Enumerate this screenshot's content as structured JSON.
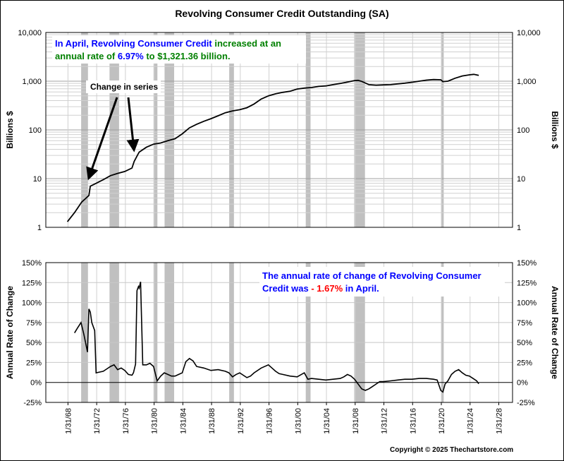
{
  "title": "Revolving Consumer Credit Outstanding (SA)",
  "copyright": "Copyright © 2025 Thechartstore.com",
  "colors": {
    "recession": "#c0c0c0",
    "line": "#000000",
    "blue": "#0000ff",
    "green": "#008000",
    "red": "#ff0000"
  },
  "x_axis": {
    "ticks": [
      "1/31/68",
      "1/31/72",
      "1/31/76",
      "1/31/80",
      "1/31/84",
      "1/31/88",
      "1/31/92",
      "1/31/96",
      "1/31/00",
      "1/31/04",
      "1/31/08",
      "1/31/12",
      "1/31/16",
      "1/31/20",
      "1/31/24",
      "1/31/28"
    ]
  },
  "recessions": [
    [
      1969.92,
      1970.87
    ],
    [
      1973.87,
      1975.2
    ],
    [
      1980.0,
      1980.54
    ],
    [
      1981.54,
      1982.87
    ],
    [
      1990.54,
      1991.2
    ],
    [
      2001.2,
      2001.87
    ],
    [
      2007.95,
      2009.45
    ],
    [
      2020.12,
      2020.3
    ]
  ],
  "chart_data": [
    {
      "type": "line",
      "scale": "log",
      "ylabel": "Billions $",
      "y_ticks": [
        "1",
        "10",
        "100",
        "1,000",
        "10,000"
      ],
      "ylim": [
        1,
        10000
      ],
      "grid": true,
      "annotation": {
        "parts": [
          {
            "text": "In April, Revolving Consumer Credit ",
            "color": "blue"
          },
          {
            "text": "increased at an annual rate of ",
            "color": "green"
          },
          {
            "text": "6.97%",
            "color": "blue"
          },
          {
            "text": " to $1,321.36 billion.",
            "color": "green"
          }
        ],
        "change_label": "Change in series"
      },
      "x": [
        1968.0,
        1969.0,
        1970.0,
        1971.0,
        1971.2,
        1972.0,
        1973.0,
        1974.0,
        1975.0,
        1976.0,
        1977.0,
        1977.3,
        1977.8,
        1978.0,
        1979.0,
        1980.0,
        1981.0,
        1982.0,
        1983.0,
        1984.0,
        1985.0,
        1986.0,
        1987.0,
        1988.0,
        1989.0,
        1990.0,
        1991.0,
        1992.0,
        1993.0,
        1994.0,
        1995.0,
        1996.0,
        1997.0,
        1998.0,
        1999.0,
        2000.0,
        2001.0,
        2002.0,
        2003.0,
        2004.0,
        2005.0,
        2006.0,
        2007.0,
        2008.0,
        2008.5,
        2009.0,
        2010.0,
        2011.0,
        2012.0,
        2013.0,
        2014.0,
        2015.0,
        2016.0,
        2017.0,
        2018.0,
        2019.0,
        2020.0,
        2020.3,
        2021.0,
        2022.0,
        2023.0,
        2024.0,
        2024.6,
        2025.3
      ],
      "values": [
        1.3,
        2.0,
        3.3,
        4.5,
        7.0,
        8.0,
        9.5,
        11.5,
        12.8,
        14.0,
        16.5,
        22.5,
        31.0,
        35.0,
        44.0,
        51.0,
        54.0,
        60.0,
        66.0,
        83.0,
        110.0,
        130.0,
        150.0,
        170.0,
        195.0,
        225.0,
        245.0,
        260.0,
        285.0,
        340.0,
        430.0,
        500.0,
        550.0,
        590.0,
        620.0,
        690.0,
        720.0,
        740.0,
        780.0,
        800.0,
        850.0,
        900.0,
        960.0,
        1030.0,
        1040.0,
        990.0,
        850.0,
        830.0,
        840.0,
        850.0,
        880.0,
        910.0,
        950.0,
        1000.0,
        1050.0,
        1080.0,
        1070.0,
        980.0,
        1000.0,
        1150.0,
        1280.0,
        1350.0,
        1380.0,
        1320.0
      ]
    },
    {
      "type": "line",
      "ylabel": "Annual Rate of Change",
      "y_ticks": [
        "-25%",
        "0%",
        "25%",
        "50%",
        "75%",
        "100%",
        "125%",
        "150%"
      ],
      "ylim": [
        -25,
        150
      ],
      "grid": true,
      "zero_line": true,
      "annotation": {
        "parts": [
          {
            "text": "The annual rate of change of Revolving Consumer Credit was ",
            "color": "blue"
          },
          {
            "text": "- 1.67%",
            "color": "red"
          },
          {
            "text": " in April.",
            "color": "blue"
          }
        ]
      },
      "x": [
        1969.0,
        1969.4,
        1969.9,
        1970.3,
        1970.8,
        1971.0,
        1971.2,
        1971.4,
        1971.8,
        1972.0,
        1972.5,
        1973.0,
        1973.5,
        1974.0,
        1974.5,
        1975.0,
        1975.5,
        1976.0,
        1976.5,
        1977.0,
        1977.2,
        1977.5,
        1977.7,
        1977.9,
        1978.0,
        1978.2,
        1978.5,
        1979.0,
        1979.5,
        1980.0,
        1980.5,
        1981.0,
        1981.5,
        1982.0,
        1982.5,
        1983.0,
        1983.5,
        1984.0,
        1984.5,
        1985.0,
        1985.5,
        1986.0,
        1987.0,
        1988.0,
        1989.0,
        1990.0,
        1990.5,
        1991.0,
        1991.5,
        1992.0,
        1992.5,
        1993.0,
        1993.5,
        1994.0,
        1995.0,
        1996.0,
        1996.5,
        1997.0,
        1997.5,
        1998.0,
        1999.0,
        2000.0,
        2001.0,
        2001.5,
        2002.0,
        2003.0,
        2004.0,
        2005.0,
        2006.0,
        2006.5,
        2007.0,
        2007.5,
        2008.0,
        2008.5,
        2009.0,
        2009.5,
        2010.0,
        2010.5,
        2011.0,
        2011.5,
        2012.0,
        2013.0,
        2014.0,
        2015.0,
        2016.0,
        2017.0,
        2018.0,
        2019.0,
        2019.5,
        2020.0,
        2020.3,
        2020.6,
        2021.0,
        2021.5,
        2022.0,
        2022.5,
        2023.0,
        2023.5,
        2024.0,
        2024.5,
        2025.0,
        2025.3
      ],
      "values": [
        62,
        68,
        75,
        60,
        38,
        92,
        88,
        75,
        65,
        12,
        13,
        14,
        17,
        20,
        22,
        16,
        18,
        15,
        10,
        9,
        12,
        23,
        115,
        120,
        118,
        126,
        22,
        22,
        24,
        20,
        2,
        8,
        12,
        10,
        8,
        8,
        10,
        12,
        26,
        30,
        27,
        20,
        18,
        15,
        16,
        14,
        12,
        7,
        10,
        12,
        9,
        6,
        8,
        12,
        18,
        22,
        18,
        14,
        11,
        10,
        8,
        7,
        12,
        4,
        5,
        4,
        3,
        4,
        5,
        7,
        10,
        8,
        4,
        -2,
        -8,
        -10,
        -8,
        -5,
        -2,
        1,
        1,
        2,
        3,
        4,
        4,
        5,
        5,
        4,
        3,
        -10,
        -12,
        -2,
        2,
        10,
        14,
        16,
        12,
        9,
        8,
        5,
        2,
        -1.67
      ]
    }
  ]
}
